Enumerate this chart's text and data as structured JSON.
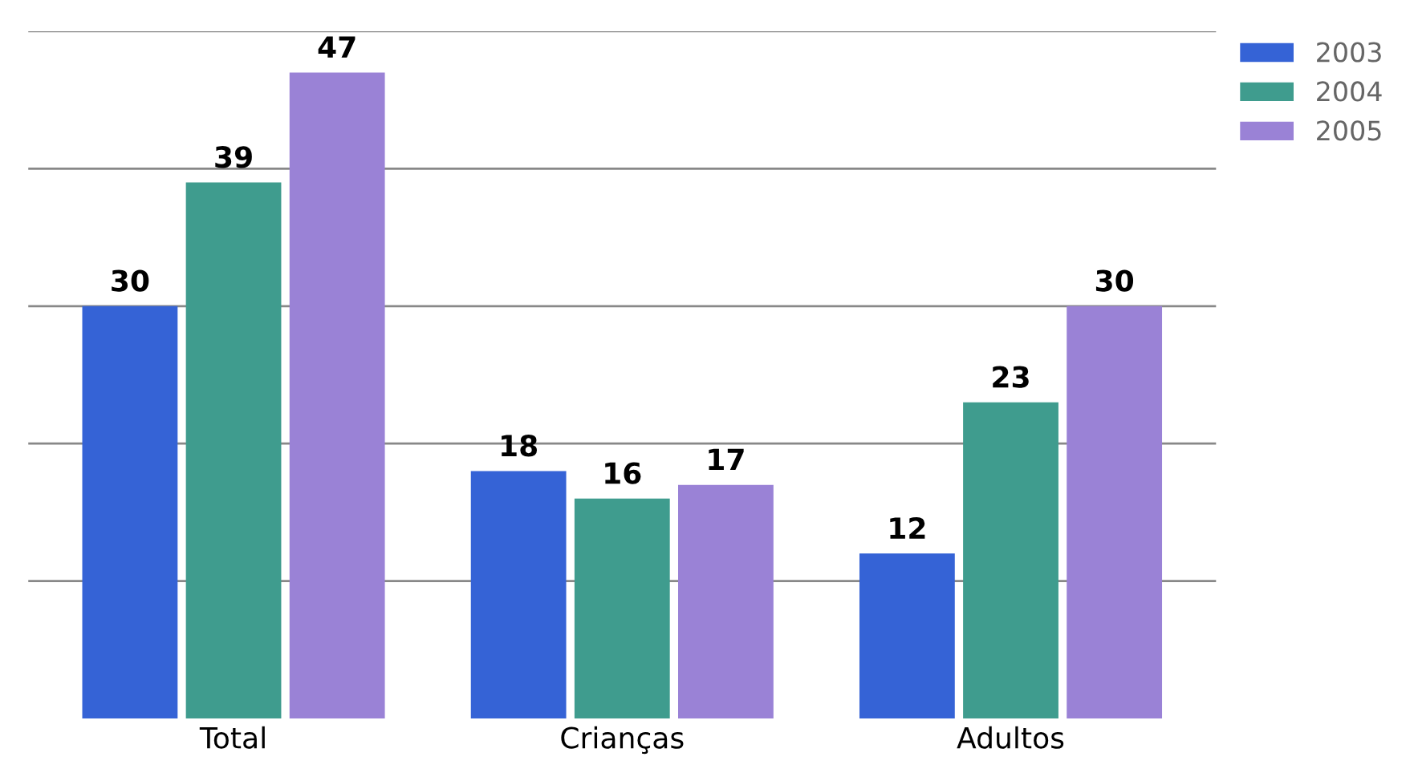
{
  "chart_data": {
    "type": "bar",
    "categories": [
      "Total",
      "Crianças",
      "Adultos"
    ],
    "series": [
      {
        "name": "2003",
        "color": "#3563d6",
        "values": [
          30,
          18,
          12
        ]
      },
      {
        "name": "2004",
        "color": "#3f9c8e",
        "values": [
          39,
          16,
          23
        ]
      },
      {
        "name": "2005",
        "color": "#9a82d6",
        "values": [
          47,
          17,
          30
        ]
      }
    ],
    "ylim": [
      0,
      50
    ],
    "yticks": [
      {
        "value": 10,
        "label": null
      },
      {
        "value": 20,
        "label": null
      },
      {
        "value": 30,
        "label": null
      },
      {
        "value": 40,
        "label": null
      },
      {
        "value": 50,
        "label": null
      }
    ],
    "tick_labels": "x",
    "grid": "y",
    "legend": "top right",
    "data_labels": true
  }
}
